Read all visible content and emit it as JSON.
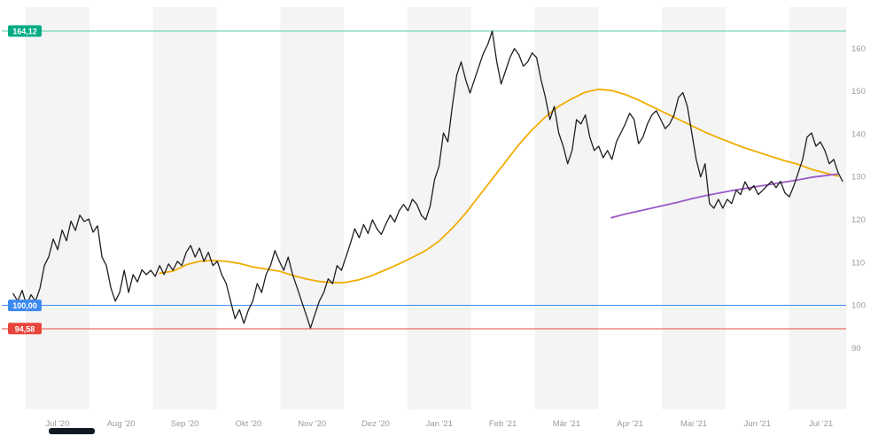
{
  "chart_data": {
    "type": "line",
    "title": "",
    "x_axis": {
      "tick_labels": [
        "Jul '20",
        "Aug '20",
        "Sep '20",
        "Okt '20",
        "Nov '20",
        "Dez '20",
        "Jan '21",
        "Feb '21",
        "Mär '21",
        "Apr '21",
        "Mai '21",
        "Jun '21",
        "Jul '21"
      ]
    },
    "y_axis": {
      "ticks": [
        160,
        150,
        140,
        130,
        120,
        110,
        100,
        90
      ],
      "ylim": [
        75.7,
        169.7
      ],
      "side": "right"
    },
    "xlim": [
      0,
      13.16
    ],
    "month_origin": 0.265,
    "grid": "vertical-month-bands",
    "band_color": "#f4f4f5",
    "axis_text_color": "#9b9b9b",
    "series": [
      {
        "name": "price",
        "color": "#1f1f1f",
        "width": 1.3,
        "x_start": 0.07,
        "x_step": 0.0697,
        "values": [
          102.7,
          101.0,
          103.5,
          100.0,
          102.5,
          101.0,
          104.0,
          109.3,
          111.4,
          115.5,
          113.0,
          117.6,
          115.1,
          119.7,
          117.5,
          121.1,
          119.6,
          120.2,
          117.1,
          118.6,
          111.3,
          109.3,
          104.1,
          101.0,
          103.0,
          108.2,
          103.0,
          107.2,
          105.5,
          108.3,
          107.2,
          108.2,
          106.8,
          109.3,
          107.2,
          109.7,
          108.2,
          110.3,
          109.3,
          112.4,
          114.0,
          111.3,
          113.4,
          110.3,
          112.4,
          109.3,
          110.3,
          107.2,
          105.1,
          101.0,
          96.9,
          99.0,
          95.8,
          98.9,
          101.0,
          105.1,
          103.0,
          107.2,
          109.3,
          112.8,
          110.3,
          108.2,
          111.3,
          107.2,
          104.1,
          101.0,
          97.9,
          94.7,
          97.9,
          101.0,
          103.0,
          106.2,
          105.1,
          109.3,
          108.2,
          111.3,
          114.4,
          117.9,
          115.8,
          118.9,
          116.8,
          120.0,
          117.9,
          116.6,
          119.0,
          121.1,
          119.5,
          122.1,
          123.6,
          122.1,
          124.8,
          123.6,
          121.1,
          120.0,
          123.2,
          129.4,
          132.5,
          140.3,
          138.2,
          146.5,
          153.8,
          156.9,
          152.8,
          149.6,
          152.8,
          155.9,
          158.9,
          161.0,
          164.1,
          157.0,
          151.7,
          154.8,
          157.9,
          160.0,
          158.6,
          155.9,
          156.9,
          159.0,
          157.9,
          152.8,
          148.6,
          143.4,
          146.5,
          140.3,
          137.2,
          133.1,
          136.2,
          143.4,
          142.4,
          144.5,
          139.3,
          136.2,
          137.2,
          134.5,
          136.2,
          134.1,
          138.2,
          140.3,
          142.4,
          144.9,
          143.4,
          137.8,
          139.3,
          142.4,
          144.5,
          145.5,
          143.4,
          141.3,
          142.4,
          144.5,
          148.6,
          149.7,
          146.5,
          140.3,
          134.1,
          130.0,
          133.1,
          123.8,
          122.7,
          124.8,
          122.7,
          124.8,
          123.8,
          126.9,
          125.9,
          128.9,
          126.9,
          128.0,
          125.9,
          126.9,
          128.0,
          129.0,
          127.5,
          129.0,
          126.3,
          125.4,
          127.9,
          131.0,
          134.1,
          139.3,
          140.3,
          137.2,
          138.2,
          136.2,
          133.1,
          134.1,
          131.0,
          129.0
        ]
      },
      {
        "name": "moving-average-long",
        "color": "#f0ad00",
        "width": 1.8,
        "x_start": 2.37,
        "x_step": 0.209,
        "values": [
          107.5,
          108.0,
          109.5,
          110.3,
          110.5,
          110.3,
          109.8,
          109.0,
          108.5,
          108.0,
          107.0,
          106.2,
          105.6,
          105.3,
          105.4,
          106.0,
          107.0,
          108.3,
          109.7,
          111.2,
          112.8,
          115.0,
          118.0,
          121.5,
          125.5,
          129.5,
          133.5,
          137.5,
          141.0,
          144.0,
          146.5,
          148.3,
          149.8,
          150.5,
          150.2,
          149.3,
          148.0,
          146.5,
          145.0,
          143.5,
          142.0,
          140.5,
          139.2,
          138.0,
          136.8,
          135.8,
          134.8,
          133.8,
          133.0,
          131.8,
          131.0,
          130.2
        ]
      },
      {
        "name": "moving-average-short",
        "color": "#9c59c9",
        "width": 1.8,
        "x_start": 9.47,
        "x_step": 0.209,
        "values": [
          120.5,
          121.3,
          122.0,
          122.7,
          123.4,
          124.1,
          124.9,
          125.6,
          126.2,
          126.8,
          127.3,
          127.8,
          128.3,
          128.8,
          129.3,
          129.9,
          130.3,
          130.7
        ]
      }
    ],
    "hlines": [
      {
        "name": "upper-threshold",
        "label": "164,12",
        "value": 164.12,
        "line_color": "#5ecfa3",
        "badge_color": "#00ab84"
      },
      {
        "name": "mid-threshold",
        "label": "100,00",
        "value": 100.0,
        "line_color": "#3d8af0",
        "badge_color": "#3d8af0"
      },
      {
        "name": "lower-threshold",
        "label": "94,58",
        "value": 94.58,
        "line_color": "#e8463c",
        "badge_color": "#e8463c"
      }
    ],
    "legend": "none"
  },
  "scrollbar": {
    "thumb_color": "#0e1822"
  }
}
